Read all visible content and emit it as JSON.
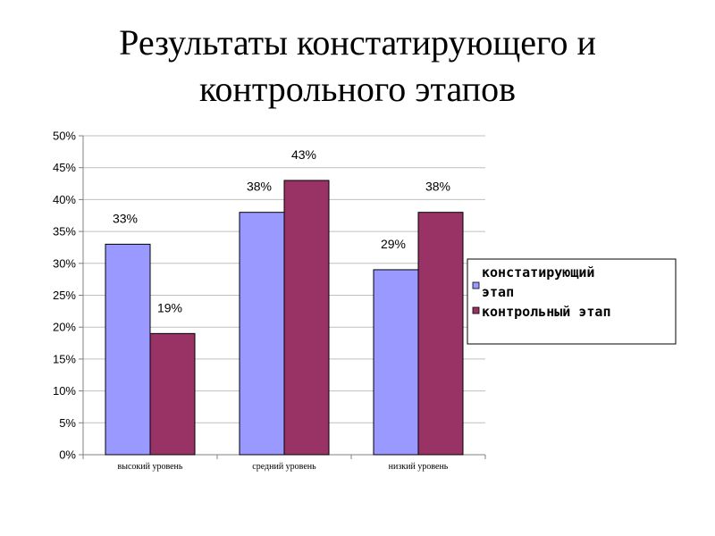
{
  "title": {
    "line1": "Результаты констатирующего и",
    "line2": "контрольного этапов"
  },
  "chart_data": {
    "type": "bar",
    "categories": [
      "высокий уровень",
      "средний уровень",
      "низкий уровень"
    ],
    "series": [
      {
        "name": "констатирующий этап",
        "values": [
          33,
          38,
          29
        ],
        "labels": [
          "33%",
          "38%",
          "29%"
        ],
        "color": "#9999ff"
      },
      {
        "name": "контрольный этап",
        "values": [
          19,
          43,
          38
        ],
        "labels": [
          "19%",
          "43%",
          "38%"
        ],
        "color": "#993366"
      }
    ],
    "legend": {
      "position": "right",
      "lines": [
        [
          "констатирующий",
          "этап"
        ],
        [
          "контрольный этап"
        ]
      ]
    },
    "ylim": [
      0,
      50
    ],
    "y_ticks": [
      "0%",
      "5%",
      "10%",
      "15%",
      "20%",
      "25%",
      "30%",
      "35%",
      "40%",
      "45%",
      "50%"
    ],
    "grid": true
  }
}
